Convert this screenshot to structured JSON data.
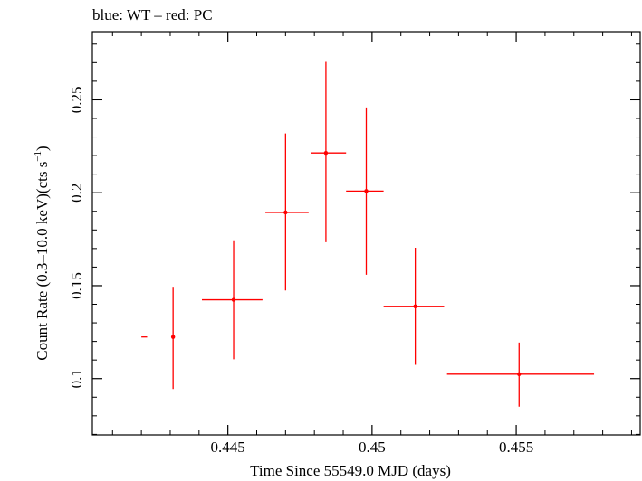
{
  "chart_data": {
    "type": "scatter",
    "title": "blue: WT – red: PC",
    "xlabel": "Time Since 55549.0 MJD (days)",
    "ylabel_main": "Count Rate (0.3–10.0 keV)(cts s",
    "ylabel_sup": "−1",
    "ylabel_end": ")",
    "xlim": [
      0.4403,
      0.4593
    ],
    "ylim": [
      0.0697,
      0.2867
    ],
    "x_ticks": [
      {
        "value": 0.445,
        "label": "0.445"
      },
      {
        "value": 0.45,
        "label": "0.45"
      },
      {
        "value": 0.455,
        "label": "0.455"
      }
    ],
    "y_ticks": [
      {
        "value": 0.1,
        "label": "0.1"
      },
      {
        "value": 0.15,
        "label": "0.15"
      },
      {
        "value": 0.2,
        "label": "0.2"
      },
      {
        "value": 0.25,
        "label": "0.25"
      }
    ],
    "grid": false,
    "series": [
      {
        "color": "#ff0000",
        "points": [
          {
            "x": 0.4431,
            "y": 0.1224,
            "xlo": 0.442,
            "xhi": 0.4422,
            "ylo": 0.0944,
            "yhi": 0.1494
          },
          {
            "x": 0.4452,
            "y": 0.1424,
            "xlo": 0.4441,
            "xhi": 0.4462,
            "ylo": 0.1104,
            "yhi": 0.1744
          },
          {
            "x": 0.447,
            "y": 0.1894,
            "xlo": 0.4463,
            "xhi": 0.4478,
            "ylo": 0.1474,
            "yhi": 0.2319
          },
          {
            "x": 0.4484,
            "y": 0.2214,
            "xlo": 0.4479,
            "xhi": 0.4491,
            "ylo": 0.1734,
            "yhi": 0.2704
          },
          {
            "x": 0.4498,
            "y": 0.2009,
            "xlo": 0.4491,
            "xhi": 0.4504,
            "ylo": 0.1559,
            "yhi": 0.2459
          },
          {
            "x": 0.4515,
            "y": 0.1389,
            "xlo": 0.4504,
            "xhi": 0.4525,
            "ylo": 0.1074,
            "yhi": 0.1704
          },
          {
            "x": 0.4551,
            "y": 0.1024,
            "xlo": 0.4526,
            "xhi": 0.4577,
            "ylo": 0.0849,
            "yhi": 0.1194
          }
        ]
      }
    ]
  }
}
